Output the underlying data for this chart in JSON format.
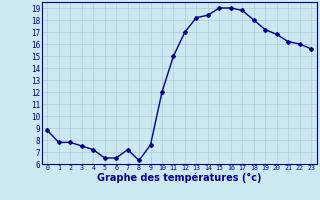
{
  "x": [
    0,
    1,
    2,
    3,
    4,
    5,
    6,
    7,
    8,
    9,
    10,
    11,
    12,
    13,
    14,
    15,
    16,
    17,
    18,
    19,
    20,
    21,
    22,
    23
  ],
  "y": [
    8.8,
    7.8,
    7.8,
    7.5,
    7.2,
    6.5,
    6.5,
    7.2,
    6.3,
    7.6,
    12.0,
    15.0,
    17.0,
    18.2,
    18.4,
    19.0,
    19.0,
    18.8,
    18.0,
    17.2,
    16.8,
    16.2,
    16.0,
    15.6
  ],
  "line_color": "#00008b",
  "marker": "D",
  "marker_size": 2,
  "line_width": 1.0,
  "xlabel": "Graphe des températures (°c)",
  "xlabel_fontsize": 7,
  "xlim": [
    -0.5,
    23.5
  ],
  "ylim": [
    6,
    19.5
  ],
  "yticks": [
    6,
    7,
    8,
    9,
    10,
    11,
    12,
    13,
    14,
    15,
    16,
    17,
    18,
    19
  ],
  "xticks": [
    0,
    1,
    2,
    3,
    4,
    5,
    6,
    7,
    8,
    9,
    10,
    11,
    12,
    13,
    14,
    15,
    16,
    17,
    18,
    19,
    20,
    21,
    22,
    23
  ],
  "bg_color": "#cce8f0",
  "grid_color": "#aaccd8",
  "tick_color": "#00008b",
  "label_color": "#00008b",
  "spine_color": "#00008b"
}
